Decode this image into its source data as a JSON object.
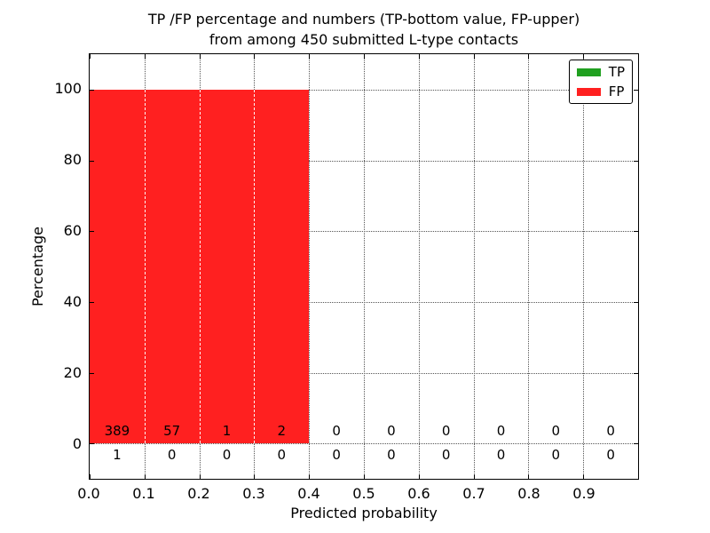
{
  "chart_data": {
    "type": "bar",
    "stacked": true,
    "title_line1": "TP /FP percentage and numbers (TP-bottom value, FP-upper)",
    "title_line2": "from among 450 submitted L-type contacts",
    "xlabel": "Predicted probability",
    "ylabel": "Percentage",
    "xlim": [
      0.0,
      1.0
    ],
    "ylim": [
      -10,
      110
    ],
    "xtick_labels": [
      "0.0",
      "0.1",
      "0.2",
      "0.3",
      "0.4",
      "0.5",
      "0.6",
      "0.7",
      "0.8",
      "0.9"
    ],
    "ytick_values": [
      0,
      20,
      40,
      60,
      80,
      100
    ],
    "ytick_labels": [
      "0",
      "20",
      "40",
      "60",
      "80",
      "100"
    ],
    "grid": true,
    "grid_style": "dotted",
    "legend_position": "upper right",
    "bin_width": 0.1,
    "bin_starts": [
      0.0,
      0.1,
      0.2,
      0.3,
      0.4,
      0.5,
      0.6,
      0.7,
      0.8,
      0.9
    ],
    "bar_heights_pct": [
      100,
      100,
      100,
      100,
      0,
      0,
      0,
      0,
      0,
      0
    ],
    "series": [
      {
        "name": "TP",
        "color": "#20a020",
        "counts": [
          1,
          0,
          0,
          0,
          0,
          0,
          0,
          0,
          0,
          0
        ],
        "label_row": "bottom"
      },
      {
        "name": "FP",
        "color": "#ff2020",
        "counts": [
          389,
          57,
          1,
          2,
          0,
          0,
          0,
          0,
          0,
          0
        ],
        "label_row": "upper"
      }
    ],
    "legend": [
      {
        "label": "TP",
        "color": "#20a020"
      },
      {
        "label": "FP",
        "color": "#ff2020"
      }
    ]
  }
}
